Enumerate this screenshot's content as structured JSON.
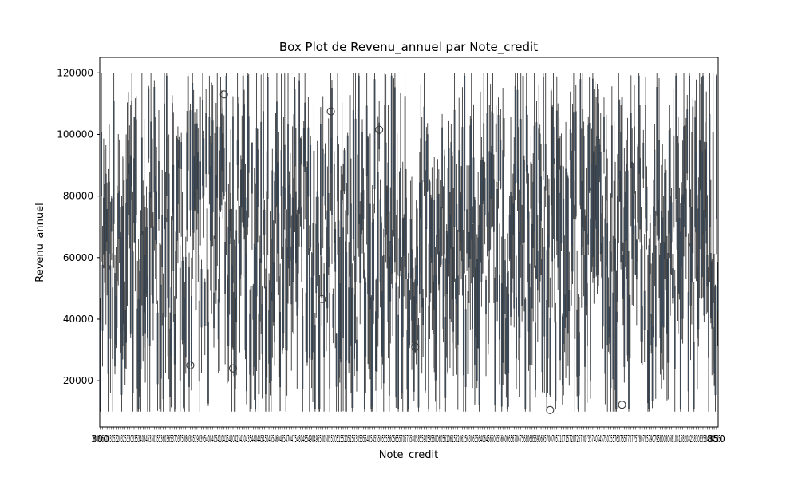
{
  "chart_data": {
    "type": "box",
    "title": "Box Plot de Revenu_annuel par Note_credit",
    "xlabel": "Note_credit",
    "ylabel": "Revenu_annuel",
    "ylim": [
      5000,
      125000
    ],
    "y_ticks": [
      20000,
      40000,
      60000,
      80000,
      100000,
      120000
    ],
    "y_tick_labels": [
      "20000",
      "40000",
      "60000",
      "80000",
      "100000",
      "120000"
    ],
    "x_tick_labels_visible": [
      "300",
      "850"
    ],
    "category_count": 550,
    "category_range": [
      300,
      850
    ],
    "grid": false,
    "legend": "none",
    "colors": {
      "box_edge": "#3a3a3a",
      "box_fill": "#3f5a78",
      "axis": "#000000"
    },
    "notable_outliers": [
      {
        "category_index": 80,
        "value": 25000
      },
      {
        "category_index": 110,
        "value": 113000
      },
      {
        "category_index": 118,
        "value": 24000
      },
      {
        "category_index": 197,
        "value": 46500
      },
      {
        "category_index": 205,
        "value": 107500
      },
      {
        "category_index": 248,
        "value": 101500
      },
      {
        "category_index": 280,
        "value": 31000
      },
      {
        "category_index": 400,
        "value": 10500
      },
      {
        "category_index": 464,
        "value": 12200
      }
    ]
  }
}
